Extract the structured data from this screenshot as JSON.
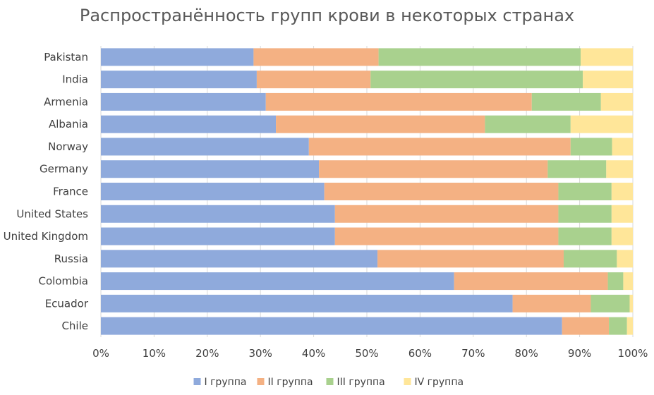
{
  "chart_data": {
    "type": "bar",
    "orientation": "horizontal",
    "stacked": "percent",
    "title": "Распространённость групп крови в некоторых странах",
    "categories": [
      "Pakistan",
      "India",
      "Armenia",
      "Albania",
      "Norway",
      "Germany",
      "France",
      "United States",
      "United Kingdom",
      "Russia",
      "Colombia",
      "Ecuador",
      "Chile"
    ],
    "series": [
      {
        "name": "I группа",
        "color": "#8faadc",
        "values": [
          28.7,
          29.3,
          31.0,
          32.9,
          39.1,
          41.0,
          42.0,
          44.0,
          44.0,
          52.0,
          66.4,
          77.4,
          86.7
        ]
      },
      {
        "name": "II группа",
        "color": "#f4b183",
        "values": [
          23.5,
          21.4,
          50.0,
          39.3,
          49.2,
          43.0,
          44.0,
          42.0,
          42.0,
          35.0,
          28.9,
          14.7,
          8.8
        ]
      },
      {
        "name": "III группа",
        "color": "#a9d18e",
        "values": [
          38.0,
          39.9,
          13.0,
          16.1,
          7.8,
          11.0,
          10.0,
          10.0,
          10.0,
          10.0,
          2.9,
          7.3,
          3.4
        ]
      },
      {
        "name": "IV группа",
        "color": "#ffe699",
        "values": [
          9.8,
          9.4,
          6.0,
          11.7,
          3.9,
          5.0,
          4.0,
          4.0,
          4.0,
          3.0,
          1.8,
          0.6,
          1.1
        ]
      }
    ],
    "xticks": [
      "0%",
      "10%",
      "20%",
      "30%",
      "40%",
      "50%",
      "60%",
      "70%",
      "80%",
      "90%",
      "100%"
    ],
    "xlim": [
      0,
      100
    ],
    "grid": true,
    "legend": "bottom"
  }
}
